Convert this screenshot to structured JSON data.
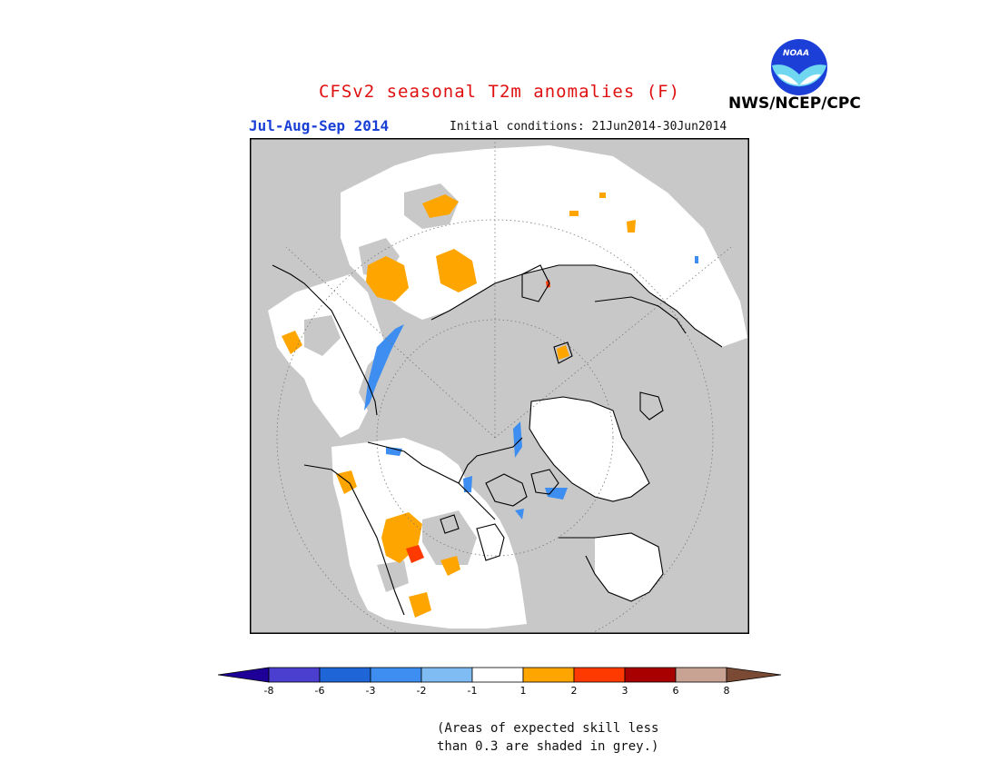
{
  "header": {
    "title": "CFSv2 seasonal T2m anomalies (F)",
    "season": "Jul-Aug-Sep 2014",
    "initial_conditions": "Initial conditions: 21Jun2014-30Jun2014",
    "agency": "NWS/NCEP/CPC",
    "logo_text": "NOAA"
  },
  "legend": {
    "ticks": [
      "-8",
      "-6",
      "-3",
      "-2",
      "-1",
      "1",
      "2",
      "3",
      "6",
      "8"
    ],
    "colors": [
      "#1e0099",
      "#4b3fd0",
      "#1e66d8",
      "#3d8ef0",
      "#80bcf4",
      "#ffffff",
      "#ffa500",
      "#ff3a00",
      "#a80000",
      "#c8a292",
      "#7a4a34"
    ],
    "note_line1": "(Areas of expected skill less",
    "note_line2": "than 0.3 are shaded in grey.)"
  },
  "map": {
    "projection": "polar stereographic (north pole)",
    "colors": {
      "grey": "#c8c8c8",
      "white": "#ffffff",
      "orange": "#ffa500",
      "red": "#ff3a00",
      "blue": "#3d8ef0",
      "frame": "#000000"
    }
  }
}
